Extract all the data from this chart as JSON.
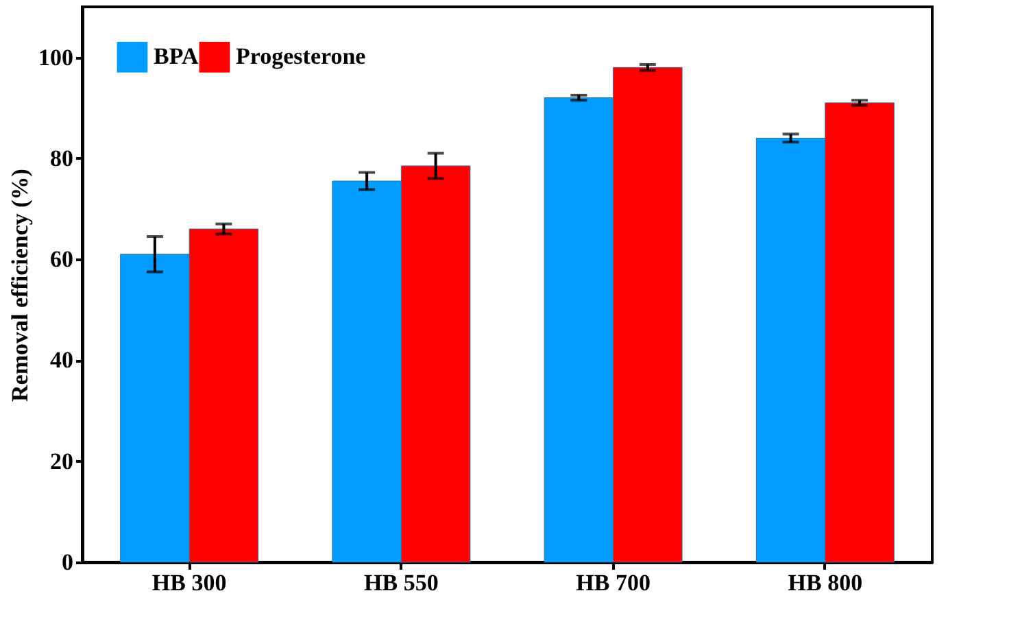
{
  "chart_data": {
    "type": "bar",
    "ylabel": "Removal efficiency (%)",
    "categories": [
      "HB 300",
      "HB 550",
      "HB 700",
      "HB 800"
    ],
    "series": [
      {
        "name": "BPA",
        "color": "#009cff",
        "values": [
          61,
          75.5,
          92,
          84
        ],
        "errors": [
          3.5,
          1.7,
          0.5,
          0.8
        ]
      },
      {
        "name": "Progesterone",
        "color": "#ff0000",
        "values": [
          66,
          78.5,
          98,
          91
        ],
        "errors": [
          1,
          2.5,
          0.6,
          0.5
        ]
      }
    ],
    "ylim": [
      0,
      110
    ],
    "yticks": [
      0,
      20,
      40,
      60,
      80,
      100
    ],
    "grid": false,
    "legend": "top left"
  }
}
